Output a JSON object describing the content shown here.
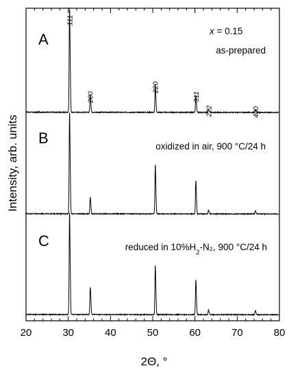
{
  "chart_data": {
    "type": "line",
    "xlabel": "2Θ, °",
    "ylabel": "Intensity, arb. units",
    "xlim": [
      20,
      80
    ],
    "x_ticks": [
      20,
      30,
      40,
      50,
      60,
      70,
      80
    ],
    "y_ticks_shown": false,
    "grid": false,
    "peak_labels": [
      {
        "hkl": "111",
        "x": 30.3
      },
      {
        "hkl": "200",
        "x": 35.2
      },
      {
        "hkl": "220",
        "x": 50.6
      },
      {
        "hkl": "311",
        "x": 60.2
      },
      {
        "hkl": "222",
        "x": 63.2
      },
      {
        "hkl": "400",
        "x": 74.3
      }
    ],
    "composition_label": {
      "var": "x",
      "text": " = 0.15"
    },
    "panels": [
      {
        "letter": "A",
        "condition": {
          "pre": "as-prepared",
          "sub": "",
          "post": ""
        },
        "peaks": [
          {
            "x": 30.3,
            "intensity": 100
          },
          {
            "x": 35.2,
            "intensity": 16
          },
          {
            "x": 50.6,
            "intensity": 26
          },
          {
            "x": 60.2,
            "intensity": 16
          },
          {
            "x": 63.2,
            "intensity": 3
          },
          {
            "x": 74.3,
            "intensity": 2
          }
        ]
      },
      {
        "letter": "B",
        "condition": {
          "pre": "oxidized in air, 900 °C/24 h",
          "sub": "",
          "post": ""
        },
        "peaks": [
          {
            "x": 30.3,
            "intensity": 100
          },
          {
            "x": 35.2,
            "intensity": 16
          },
          {
            "x": 50.6,
            "intensity": 48
          },
          {
            "x": 60.2,
            "intensity": 33
          },
          {
            "x": 63.2,
            "intensity": 4
          },
          {
            "x": 74.3,
            "intensity": 3
          }
        ]
      },
      {
        "letter": "C",
        "condition": {
          "pre": "reduced in 10%H",
          "sub": "2",
          "post": "-N₂, 900 °C/24 h"
        },
        "peaks": [
          {
            "x": 30.3,
            "intensity": 100
          },
          {
            "x": 35.2,
            "intensity": 27
          },
          {
            "x": 50.6,
            "intensity": 48
          },
          {
            "x": 60.2,
            "intensity": 34
          },
          {
            "x": 63.2,
            "intensity": 5
          },
          {
            "x": 74.3,
            "intensity": 4
          }
        ]
      }
    ]
  }
}
